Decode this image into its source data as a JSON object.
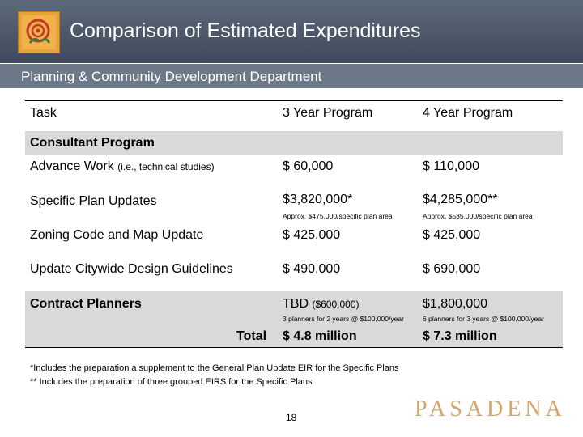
{
  "title": "Comparison of Estimated Expenditures",
  "subtitle": "Planning & Community Development Department",
  "table": {
    "headers": {
      "task": "Task",
      "col1": "3 Year Program",
      "col2": "4 Year Program"
    },
    "section": "Consultant Program",
    "rows": [
      {
        "task": "Advance Work",
        "task_note": "(i.e., technical studies)",
        "col1": "$ 60,000",
        "col2": "$ 110,000"
      },
      {
        "task": "Specific Plan Updates",
        "col1": "$3,820,000*",
        "col1_note": "Approx. $475,000/specific plan area",
        "col2": "$4,285,000**",
        "col2_note": "Approx. $535,000/specific plan area"
      },
      {
        "task": "Zoning Code and Map Update",
        "col1": "$ 425,000",
        "col2": "$ 425,000"
      },
      {
        "task": "Update Citywide Design Guidelines",
        "col1": "$ 490,000",
        "col2": "$ 690,000"
      },
      {
        "task": "Contract Planners",
        "col1": "TBD",
        "col1_inline": "($600,000)",
        "col1_note": "3 planners for 2 years @ $100,000/year",
        "col2": "$1,800,000",
        "col2_note": "6 planners for 3 years @ $100,000/year"
      }
    ],
    "total": {
      "label": "Total",
      "col1": "$ 4.8 million",
      "col2": "$ 7.3 million"
    }
  },
  "footnotes": [
    "*Includes the preparation a supplement to the General Plan Update EIR for the Specific Plans",
    "** Includes the preparation of three grouped EIRS for the Specific Plans"
  ],
  "page_number": "18",
  "brand": "PASADENA",
  "icons": {
    "logo": "rose-logo-icon"
  },
  "colors": {
    "header": "#4b5769",
    "subbar": "#6d7889",
    "band": "#d9d9d9",
    "brand": "#d4a66b",
    "logo": "#e8a33a"
  }
}
